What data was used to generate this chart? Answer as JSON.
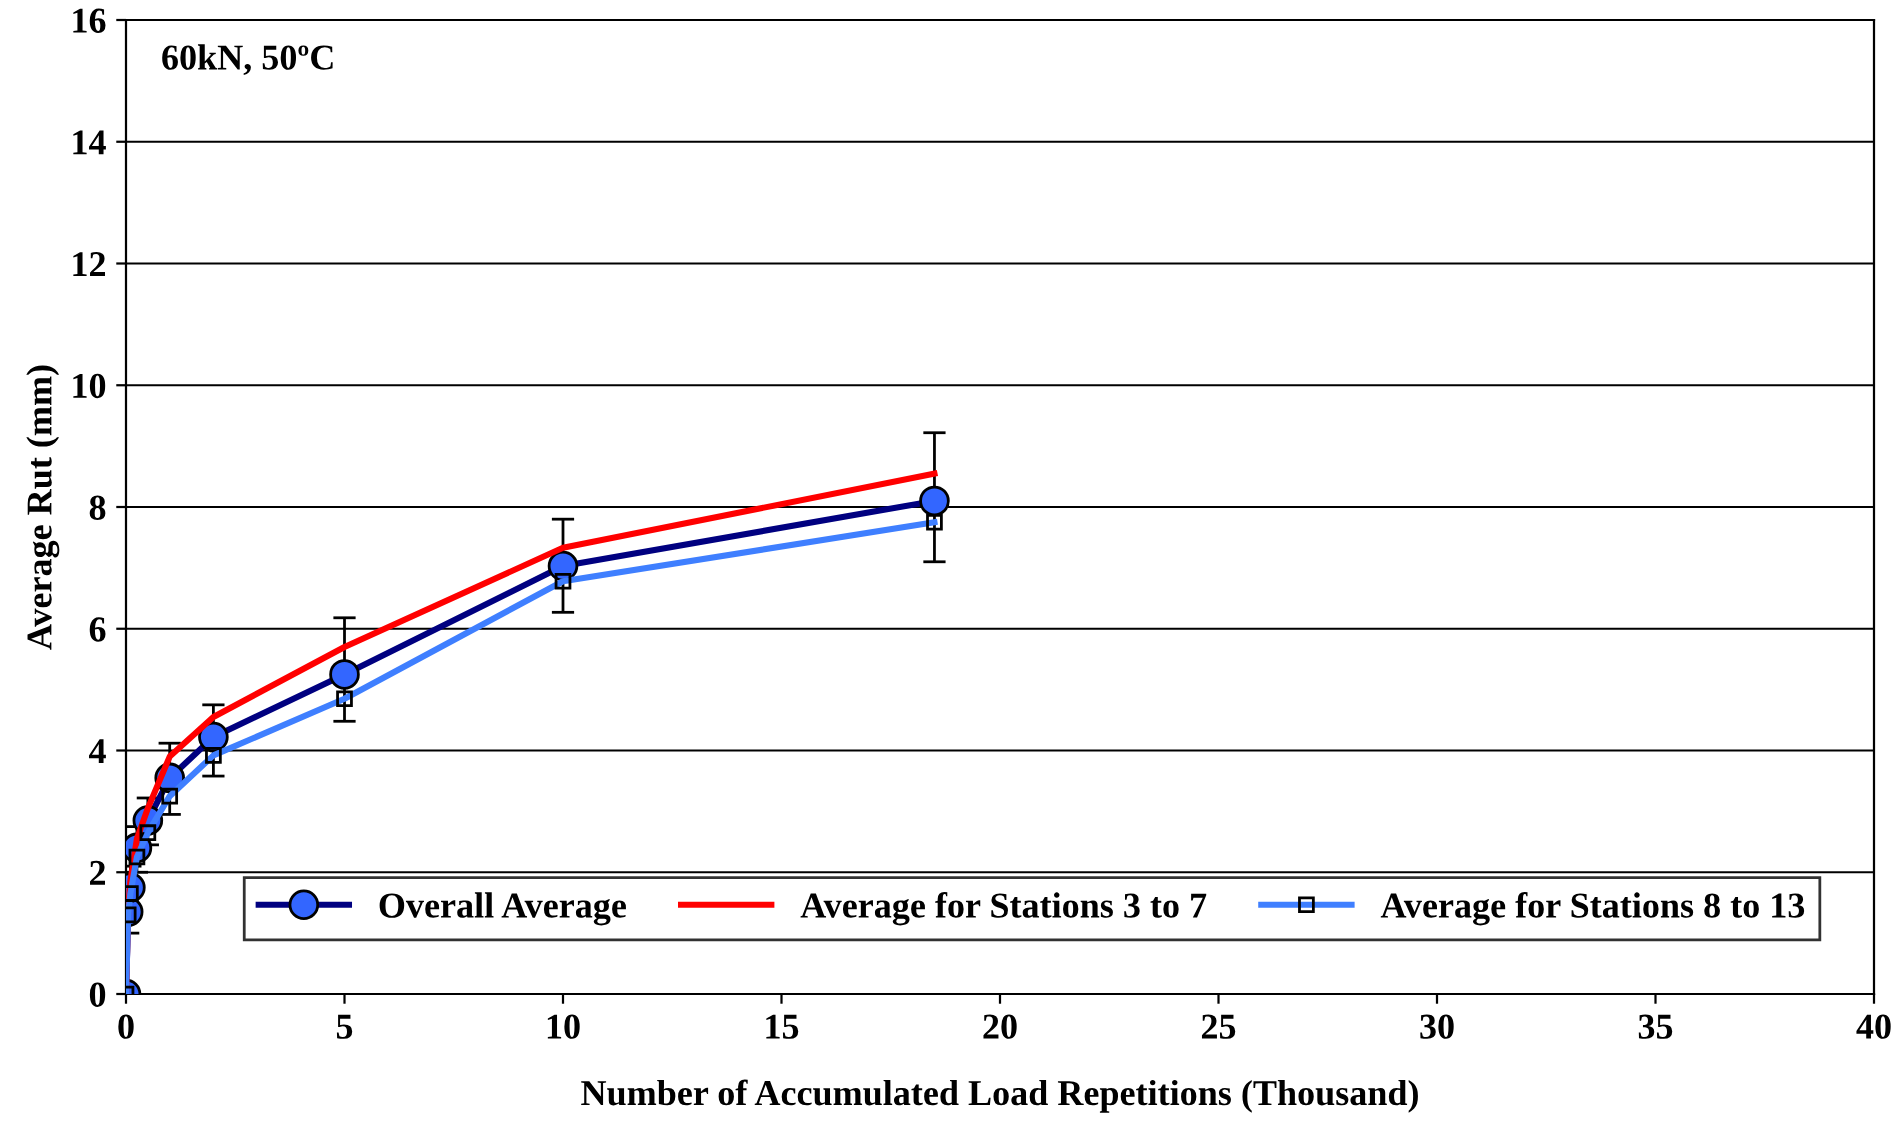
{
  "chart_data": {
    "type": "line",
    "xlabel": "Number of Accumulated Load Repetitions (Thousand)",
    "ylabel": "Average Rut (mm)",
    "annotations": [
      "60kN, 50ºC"
    ],
    "x": [
      0,
      0.05,
      0.1,
      0.25,
      0.5,
      1,
      2,
      5,
      10,
      18.5
    ],
    "series": [
      {
        "name": "Overall Average",
        "color": "#000080",
        "marker": "circle",
        "values": [
          0,
          1.35,
          1.75,
          2.4,
          2.85,
          3.55,
          4.22,
          5.25,
          7.03,
          8.1
        ],
        "errors": [
          null,
          [
            1.0,
            1.65
          ],
          [
            1.4,
            2.1
          ],
          [
            2.0,
            2.75
          ],
          [
            2.45,
            3.22
          ],
          [
            2.95,
            4.12
          ],
          [
            3.58,
            4.75
          ],
          [
            4.48,
            6.18
          ],
          [
            6.27,
            7.8
          ],
          [
            7.1,
            9.22
          ]
        ]
      },
      {
        "name": "Average for Stations 3 to 7",
        "color": "#ff0000",
        "marker": "none",
        "values": [
          0,
          1.4,
          1.85,
          2.55,
          3.05,
          3.9,
          4.55,
          5.7,
          7.33,
          8.55
        ]
      },
      {
        "name": "Average for Stations 8 to 13",
        "color": "#3f7fff",
        "marker": "square",
        "values": [
          0,
          1.3,
          1.65,
          2.25,
          2.65,
          3.25,
          3.92,
          4.85,
          6.78,
          7.75
        ]
      }
    ],
    "xlim": [
      0,
      40
    ],
    "xticks": [
      0,
      5,
      10,
      15,
      20,
      25,
      30,
      35,
      40
    ],
    "ylim": [
      0,
      16
    ],
    "yticks": [
      0,
      2,
      4,
      6,
      8,
      10,
      12,
      14,
      16
    ],
    "grid": "y",
    "legend": "bottom right",
    "line_style": "solid"
  }
}
